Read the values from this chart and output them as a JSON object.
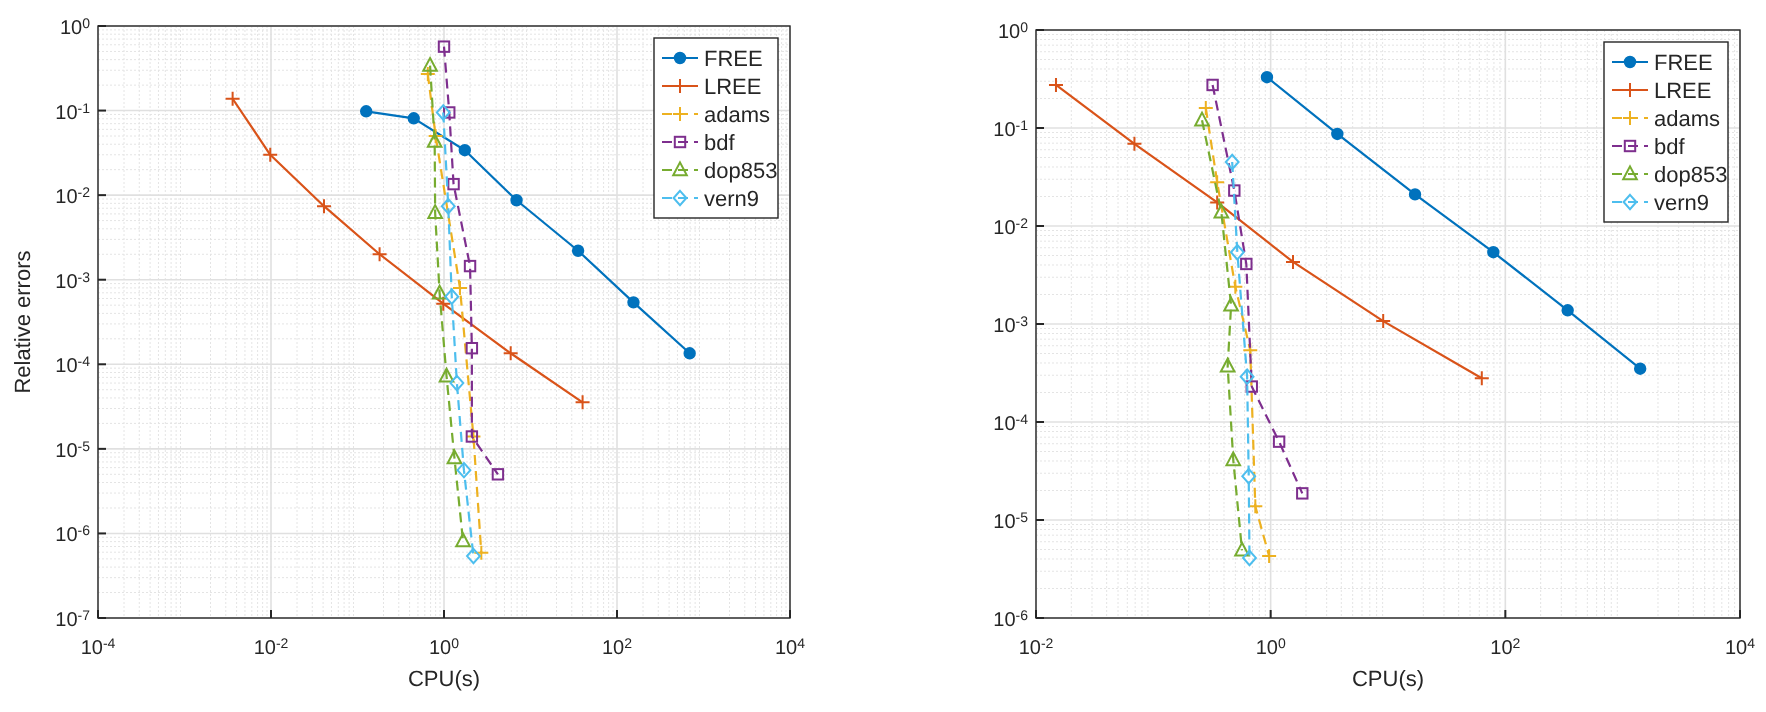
{
  "chart_data": [
    {
      "type": "line",
      "xlabel": "CPU(s)",
      "ylabel": "Relative errors",
      "log": "xy",
      "grid": true,
      "legend": "top right",
      "xlim": [
        0.0001,
        10000
      ],
      "xticks": [
        {
          "value": 0.0001,
          "label": "10$^{-4}$"
        },
        {
          "value": 0.01,
          "label": "10$^{-2}$"
        },
        {
          "value": 1,
          "label": "10$^{0}$"
        },
        {
          "value": 100,
          "label": "10$^{2}$"
        },
        {
          "value": 10000,
          "label": "10$^{4}$"
        }
      ],
      "ylim": [
        1e-07,
        1
      ],
      "yticks": [
        {
          "value": 1e-07,
          "label": "10$^{-7}$"
        },
        {
          "value": 1e-06,
          "label": "10$^{-6}$"
        },
        {
          "value": 1e-05,
          "label": "10$^{-5}$"
        },
        {
          "value": 0.0001,
          "label": "10$^{-4}$"
        },
        {
          "value": 0.001,
          "label": "10$^{-3}$"
        },
        {
          "value": 0.01,
          "label": "10$^{-2}$"
        },
        {
          "value": 0.1,
          "label": "10$^{-1}$"
        },
        {
          "value": 1,
          "label": "10$^{0}$"
        }
      ],
      "series": [
        {
          "name": "FREE",
          "color": "#0072bd",
          "marker": "circle",
          "line_style": "solid",
          "x": [
            0.126,
            0.447,
            1.74,
            6.9,
            35.5,
            155,
            692
          ],
          "values": [
            0.098,
            0.081,
            0.034,
            0.0087,
            0.0022,
            0.00054,
            0.000135
          ]
        },
        {
          "name": "LREE",
          "color": "#d95319",
          "marker": "cross",
          "line_style": "solid",
          "x": [
            0.0036,
            0.0098,
            0.041,
            0.18,
            0.98,
            5.9,
            40
          ],
          "values": [
            0.138,
            0.03,
            0.0074,
            0.002,
            0.00052,
            0.000135,
            3.55e-05
          ]
        },
        {
          "name": "adams",
          "color": "#edb120",
          "marker": "cross",
          "line_style": "dashed",
          "x": [
            0.65,
            0.8,
            1.53,
            2.19,
            2.7
          ],
          "values": [
            0.27,
            0.05,
            0.0008,
            1.4e-05,
            5.9e-07
          ]
        },
        {
          "name": "bdf",
          "color": "#7e2f8e",
          "marker": "square",
          "line_style": "dashed",
          "x": [
            1.0,
            1.15,
            1.29,
            2.0,
            2.1,
            2.1,
            4.2
          ],
          "values": [
            0.57,
            0.095,
            0.0135,
            0.00145,
            0.000155,
            1.4e-05,
            5e-06
          ]
        },
        {
          "name": "dop853",
          "color": "#77ac30",
          "marker": "triangle",
          "line_style": "dashed",
          "x": [
            0.69,
            0.78,
            0.79,
            0.89,
            1.07,
            1.32,
            1.66
          ],
          "values": [
            0.34,
            0.043,
            0.0062,
            0.00069,
            7.2e-05,
            7.8e-06,
            8.1e-07
          ]
        },
        {
          "name": "vern9",
          "color": "#4dbeee",
          "marker": "diamond",
          "line_style": "dashed",
          "x": [
            0.98,
            1.12,
            1.23,
            1.41,
            1.7,
            2.19
          ],
          "values": [
            0.095,
            0.0074,
            0.00063,
            6e-05,
            5.6e-06,
            5.4e-07
          ]
        }
      ]
    },
    {
      "type": "line",
      "xlabel": "CPU(s)",
      "log": "xy",
      "grid": true,
      "legend": "top right",
      "xlim": [
        0.01,
        10000
      ],
      "xticks": [
        {
          "value": 0.01,
          "label": "10$^{-2}$"
        },
        {
          "value": 1,
          "label": "10$^{0}$"
        },
        {
          "value": 100,
          "label": "10$^{2}$"
        },
        {
          "value": 10000,
          "label": "10$^{4}$"
        }
      ],
      "ylim": [
        1e-06,
        1
      ],
      "yticks": [
        {
          "value": 1e-06,
          "label": "10$^{-6}$"
        },
        {
          "value": 1e-05,
          "label": "10$^{-5}$"
        },
        {
          "value": 0.0001,
          "label": "10$^{-4}$"
        },
        {
          "value": 0.001,
          "label": "10$^{-3}$"
        },
        {
          "value": 0.01,
          "label": "10$^{-2}$"
        },
        {
          "value": 0.1,
          "label": "10$^{-1}$"
        },
        {
          "value": 1,
          "label": "10$^{0}$"
        }
      ],
      "series": [
        {
          "name": "FREE",
          "color": "#0072bd",
          "marker": "circle",
          "line_style": "solid",
          "x": [
            0.93,
            3.7,
            17,
            79,
            340,
            1410
          ],
          "values": [
            0.33,
            0.087,
            0.021,
            0.0054,
            0.00138,
            0.00035
          ]
        },
        {
          "name": "LREE",
          "color": "#d95319",
          "marker": "cross",
          "line_style": "solid",
          "x": [
            0.0148,
            0.069,
            0.35,
            1.55,
            9.1,
            63
          ],
          "values": [
            0.275,
            0.069,
            0.0174,
            0.0043,
            0.00107,
            0.00028
          ]
        },
        {
          "name": "adams",
          "color": "#edb120",
          "marker": "cross",
          "line_style": "dashed",
          "x": [
            0.28,
            0.35,
            0.5,
            0.67,
            0.74,
            0.97
          ],
          "values": [
            0.16,
            0.028,
            0.0024,
            0.00054,
            1.38e-05,
            4.3e-06
          ]
        },
        {
          "name": "bdf",
          "color": "#7e2f8e",
          "marker": "square",
          "line_style": "dashed",
          "x": [
            0.32,
            0.49,
            0.62,
            0.69,
            1.18,
            1.86
          ],
          "values": [
            0.275,
            0.023,
            0.0041,
            0.00023,
            6.3e-05,
            1.87e-05
          ]
        },
        {
          "name": "dop853",
          "color": "#77ac30",
          "marker": "triangle",
          "line_style": "dashed",
          "x": [
            0.26,
            0.38,
            0.46,
            0.43,
            0.48,
            0.57
          ],
          "values": [
            0.12,
            0.0138,
            0.00155,
            0.00037,
            4.1e-05,
            4.9e-06
          ]
        },
        {
          "name": "vern9",
          "color": "#4dbeee",
          "marker": "diamond",
          "line_style": "dashed",
          "x": [
            0.47,
            0.52,
            0.63,
            0.65,
            0.66
          ],
          "values": [
            0.045,
            0.0054,
            0.00029,
            2.8e-05,
            4.1e-06
          ]
        }
      ]
    }
  ]
}
